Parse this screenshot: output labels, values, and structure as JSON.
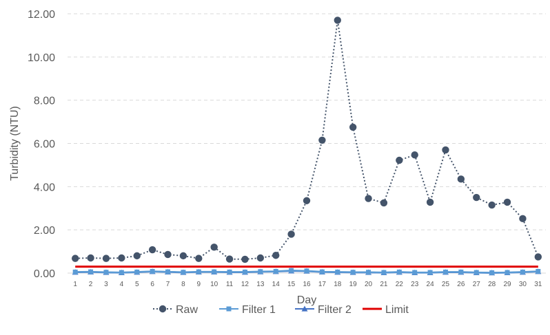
{
  "chart_data": {
    "type": "line",
    "xlabel": "Day",
    "ylabel": "Turbidity (NTU)",
    "ylim": [
      0,
      12
    ],
    "yticks": [
      "0.00",
      "2.00",
      "4.00",
      "6.00",
      "8.00",
      "10.00",
      "12.00"
    ],
    "grid": "horizontal dashed",
    "legend_position": "bottom",
    "categories": [
      "1",
      "2",
      "3",
      "4",
      "5",
      "6",
      "7",
      "8",
      "9",
      "10",
      "11",
      "12",
      "13",
      "14",
      "15",
      "16",
      "17",
      "18",
      "19",
      "20",
      "21",
      "22",
      "23",
      "24",
      "25",
      "26",
      "27",
      "28",
      "29",
      "30",
      "31"
    ],
    "series": [
      {
        "name": "Raw",
        "color": "#44546A",
        "line": "dotted",
        "marker": "circle",
        "values": [
          0.68,
          0.7,
          0.68,
          0.7,
          0.8,
          1.08,
          0.86,
          0.8,
          0.68,
          1.2,
          0.65,
          0.64,
          0.7,
          0.82,
          1.8,
          3.35,
          6.15,
          11.7,
          6.75,
          3.45,
          3.25,
          5.22,
          5.47,
          3.28,
          5.7,
          4.35,
          3.5,
          3.15,
          3.28,
          2.52,
          0.75
        ]
      },
      {
        "name": "Filter 1",
        "color": "#5B9BD5",
        "line": "solid",
        "marker": "square",
        "values": [
          0.05,
          0.06,
          0.04,
          0.03,
          0.05,
          0.08,
          0.06,
          0.04,
          0.06,
          0.06,
          0.05,
          0.05,
          0.07,
          0.08,
          0.12,
          0.1,
          0.06,
          0.05,
          0.04,
          0.04,
          0.03,
          0.05,
          0.03,
          0.03,
          0.05,
          0.05,
          0.03,
          0.02,
          0.03,
          0.05,
          0.08
        ]
      },
      {
        "name": "Filter 2",
        "color": "#4472C4",
        "line": "solid",
        "marker": "triangle",
        "values": [
          0.04,
          0.05,
          0.03,
          0.02,
          0.04,
          0.07,
          0.05,
          0.03,
          0.05,
          0.05,
          0.04,
          0.04,
          0.06,
          0.07,
          0.1,
          0.09,
          0.05,
          0.04,
          0.03,
          0.03,
          0.02,
          0.04,
          0.02,
          0.02,
          0.04,
          0.04,
          0.02,
          0.01,
          0.02,
          0.04,
          0.07
        ]
      },
      {
        "name": "Limit",
        "color": "#E00000",
        "line": "solid",
        "marker": "none",
        "values": [
          0.3,
          0.3,
          0.3,
          0.3,
          0.3,
          0.3,
          0.3,
          0.3,
          0.3,
          0.3,
          0.3,
          0.3,
          0.3,
          0.3,
          0.3,
          0.3,
          0.3,
          0.3,
          0.3,
          0.3,
          0.3,
          0.3,
          0.3,
          0.3,
          0.3,
          0.3,
          0.3,
          0.3,
          0.3,
          0.3,
          0.3
        ]
      }
    ]
  }
}
